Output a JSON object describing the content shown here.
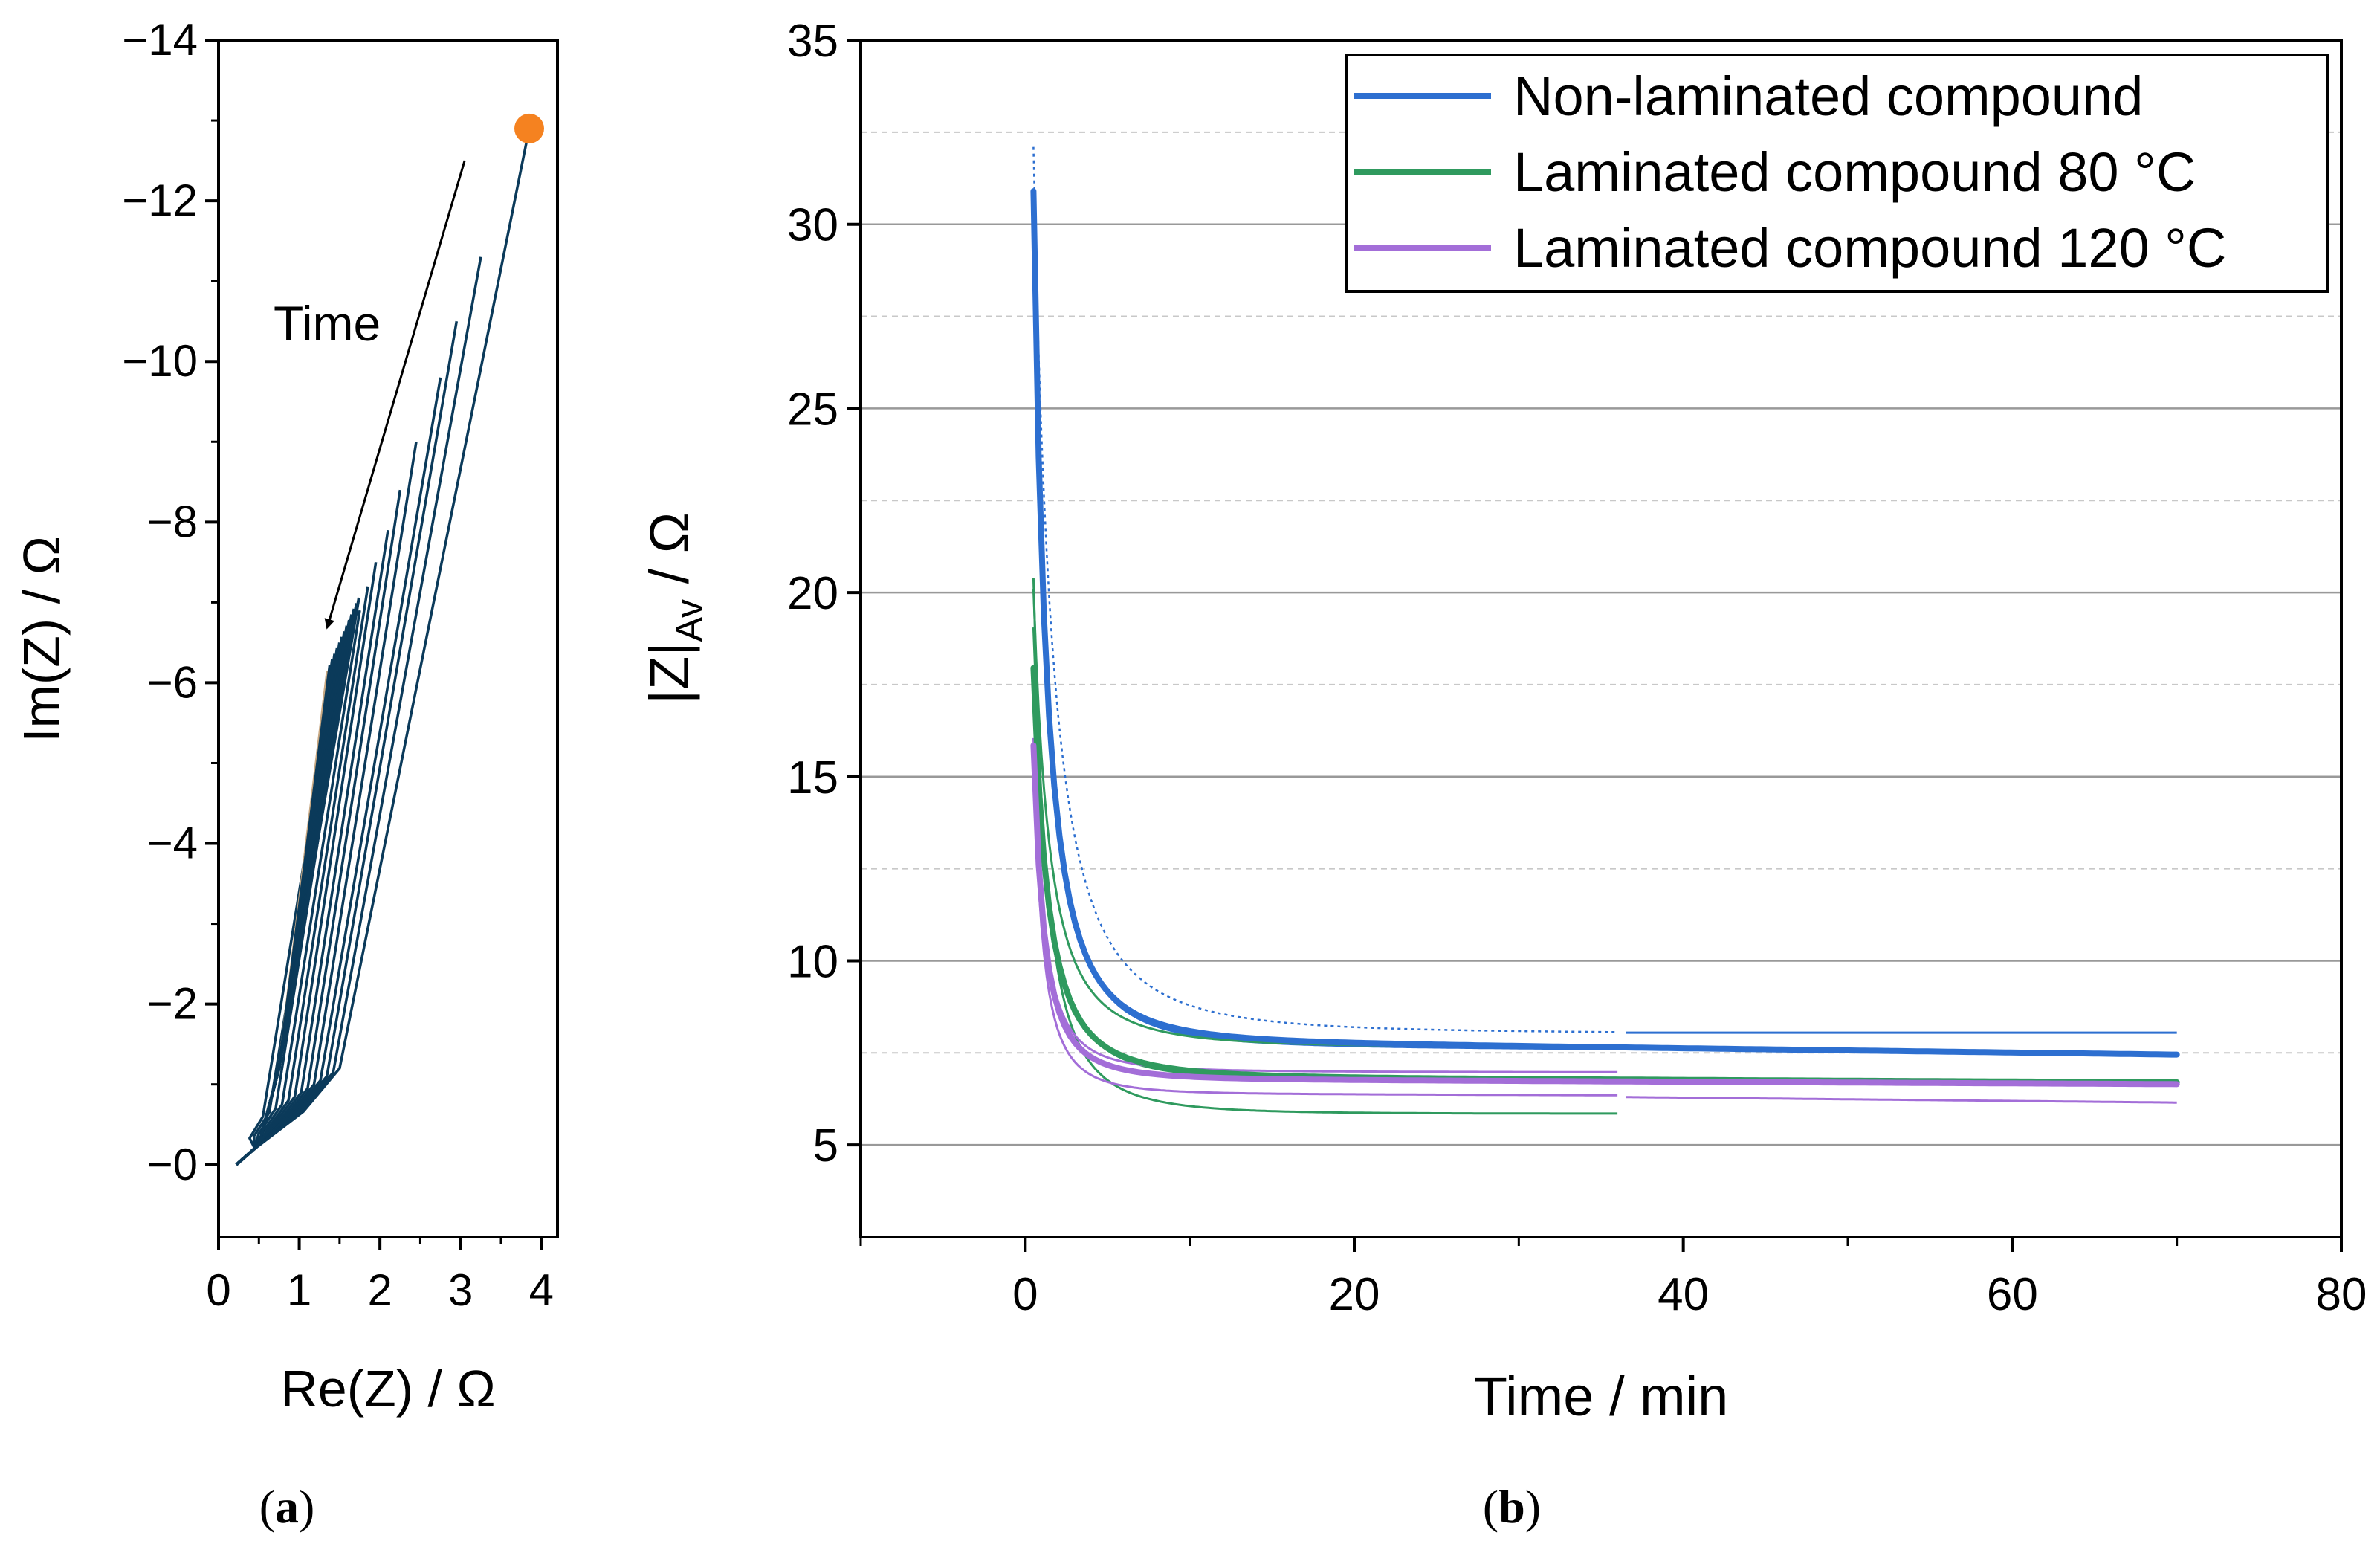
{
  "colors": {
    "nyquist": "#0b3a5a",
    "nyquist_tan": "#c8a882",
    "marker": "#f58220",
    "non_laminated": "#2d6fd0",
    "lam80": "#2f9a5e",
    "lam120": "#a36ed8",
    "grid": "#999999"
  },
  "chart_data": [
    {
      "type": "line",
      "panel_label": "a",
      "xlabel": "Re(Z) / Ω",
      "ylabel": "Im(Z) / Ω",
      "xlim": [
        0,
        4.2
      ],
      "ylim": [
        0.9,
        -14
      ],
      "x_ticks": [
        "0",
        "1",
        "2",
        "3",
        "4"
      ],
      "x_tick_values": [
        0,
        1,
        2,
        3,
        4
      ],
      "y_ticks": [
        "−0",
        "−2",
        "−4",
        "−6",
        "−8",
        "−10",
        "−12",
        "−14"
      ],
      "y_tick_values": [
        0,
        -2,
        -4,
        -6,
        -8,
        -10,
        -12,
        -14
      ],
      "annotation": "Time",
      "annotation_arrow": {
        "from": [
          3.05,
          -12.5
        ],
        "to": [
          1.35,
          -6.7
        ]
      },
      "start_marker": {
        "x": 3.85,
        "y": -12.9
      },
      "series_endpoints": [
        {
          "x": 3.85,
          "y": -12.9
        },
        {
          "x": 3.25,
          "y": -11.3
        },
        {
          "x": 2.95,
          "y": -10.5
        },
        {
          "x": 2.75,
          "y": -9.8
        },
        {
          "x": 2.45,
          "y": -9.0
        },
        {
          "x": 2.25,
          "y": -8.4
        },
        {
          "x": 2.1,
          "y": -7.9
        },
        {
          "x": 1.95,
          "y": -7.5
        },
        {
          "x": 1.85,
          "y": -7.2
        },
        {
          "x": 1.75,
          "y": -6.9
        },
        {
          "x": 1.65,
          "y": -6.7
        },
        {
          "x": 1.55,
          "y": -6.4
        },
        {
          "x": 1.45,
          "y": -6.2
        }
      ]
    },
    {
      "type": "line",
      "panel_label": "b",
      "xlabel": "Time / min",
      "ylabel_main": "|Z|",
      "ylabel_sub": "Av",
      "ylabel_unit": " / Ω",
      "xlim": [
        -10,
        80
      ],
      "ylim": [
        2.5,
        35
      ],
      "x_ticks": [
        "0",
        "20",
        "40",
        "60",
        "80"
      ],
      "x_tick_values": [
        0,
        20,
        40,
        60,
        80
      ],
      "y_ticks": [
        "5",
        "10",
        "15",
        "20",
        "25",
        "30",
        "35"
      ],
      "y_tick_values": [
        5,
        10,
        15,
        20,
        25,
        30,
        35
      ],
      "legend_position": "top-right",
      "series": [
        {
          "name": "Non-laminated compound",
          "key": "non_laminated",
          "y0": 30.5,
          "final": 7.45,
          "drift": 0.4,
          "tau": 2.4,
          "t_end": 70
        },
        {
          "name": "Laminated compound 80 °C",
          "key": "lam80",
          "y0": 17.8,
          "final": 6.7,
          "drift": 0.15,
          "tau": 2.7,
          "t_end": 70
        },
        {
          "name": "Laminated compound 120 °C",
          "key": "lam120",
          "y0": 15.7,
          "final": 6.65,
          "drift": 0.15,
          "tau": 2.0,
          "t_end": 70
        }
      ],
      "replicates": [
        {
          "key": "non_laminated",
          "y0": 32.0,
          "final": 8.0,
          "drift": 0.1,
          "tau": 3.5,
          "t_end": 36,
          "dashed": true
        },
        {
          "key": "non_laminated",
          "y0": 32.0,
          "final": 8.05,
          "drift": 0,
          "tau": 3.0,
          "t_start": 36.5,
          "t_end": 70,
          "flat": true
        },
        {
          "key": "non_laminated",
          "y0": 30.0,
          "final": 7.5,
          "drift": 0.2,
          "tau": 2.5,
          "t_end": 36
        },
        {
          "key": "lam80",
          "y0": 20.4,
          "final": 5.85,
          "drift": 0,
          "tau": 2.5,
          "t_end": 36
        },
        {
          "key": "lam80",
          "y0": 20.0,
          "final": 7.6,
          "drift": 0.1,
          "tau": 3.0,
          "t_end": 36
        },
        {
          "key": "lam80",
          "y0": 19.0,
          "final": 6.7,
          "drift": 0.05,
          "tau": 2.6,
          "t_end": 70
        },
        {
          "key": "lam120",
          "y0": 16.0,
          "final": 6.95,
          "drift": 0.05,
          "tau": 2.0,
          "t_end": 36
        },
        {
          "key": "lam120",
          "y0": 15.5,
          "final": 6.3,
          "drift": 0.1,
          "tau": 1.8,
          "t_end": 36
        },
        {
          "key": "lam120",
          "y0": 15.5,
          "final": 6.3,
          "drift": 0.15,
          "t_start": 36.5,
          "t_end": 70,
          "flat": true
        }
      ]
    }
  ]
}
